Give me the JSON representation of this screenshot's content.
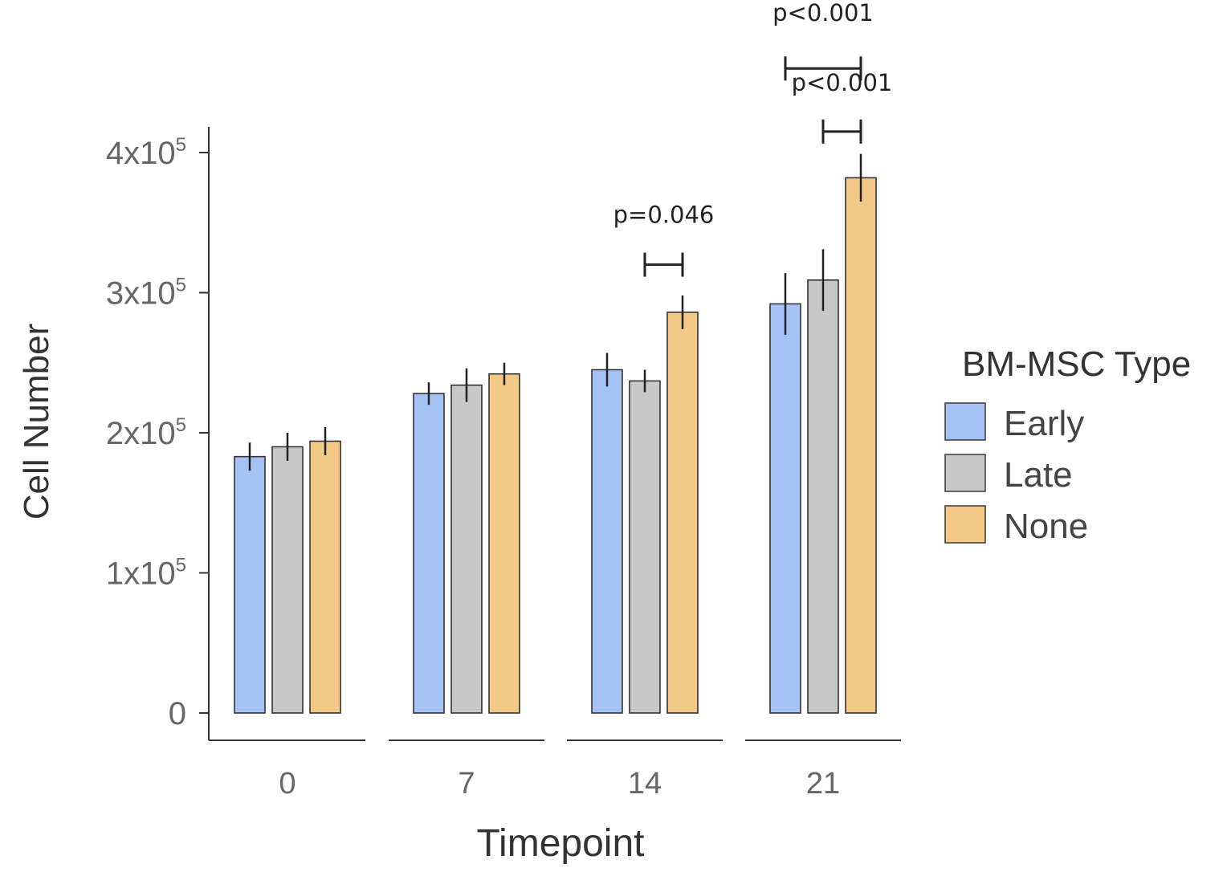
{
  "chart_data": {
    "type": "bar",
    "title": "",
    "xlabel": "Timepoint",
    "ylabel": "Cell Number",
    "categories": [
      "0",
      "7",
      "14",
      "21"
    ],
    "ylim": [
      0,
      400000
    ],
    "yticks": [
      {
        "value": 0,
        "base": "0",
        "exp": ""
      },
      {
        "value": 100000,
        "base": "1x10",
        "exp": "5"
      },
      {
        "value": 200000,
        "base": "2x10",
        "exp": "5"
      },
      {
        "value": 300000,
        "base": "3x10",
        "exp": "5"
      },
      {
        "value": 400000,
        "base": "4x10",
        "exp": "5"
      }
    ],
    "series": [
      {
        "name": "Early",
        "color": "#a4c2f4",
        "values": [
          183000,
          228000,
          245000,
          292000
        ],
        "errors": [
          10000,
          8000,
          12000,
          22000
        ]
      },
      {
        "name": "Late",
        "color": "#c8c8c8",
        "values": [
          190000,
          234000,
          237000,
          309000
        ],
        "errors": [
          10000,
          12000,
          8000,
          22000
        ]
      },
      {
        "name": "None",
        "color": "#f2c987",
        "values": [
          194000,
          242000,
          286000,
          382000
        ],
        "errors": [
          10000,
          8000,
          12000,
          17000
        ]
      }
    ],
    "legend": {
      "title": "BM-MSC Type",
      "position": "right"
    },
    "annotations": [
      {
        "label": "p=0.046",
        "category": "14",
        "from": "Late",
        "to": "None",
        "y": 320000,
        "label_y": 350000
      },
      {
        "label": "p<0.001",
        "category": "21",
        "from": "Late",
        "to": "None",
        "y": 415000,
        "label_y": 444000
      },
      {
        "label": "p<0.001",
        "category": "21",
        "from": "Early",
        "to": "None",
        "y": 460000,
        "label_y": 494000
      }
    ]
  }
}
